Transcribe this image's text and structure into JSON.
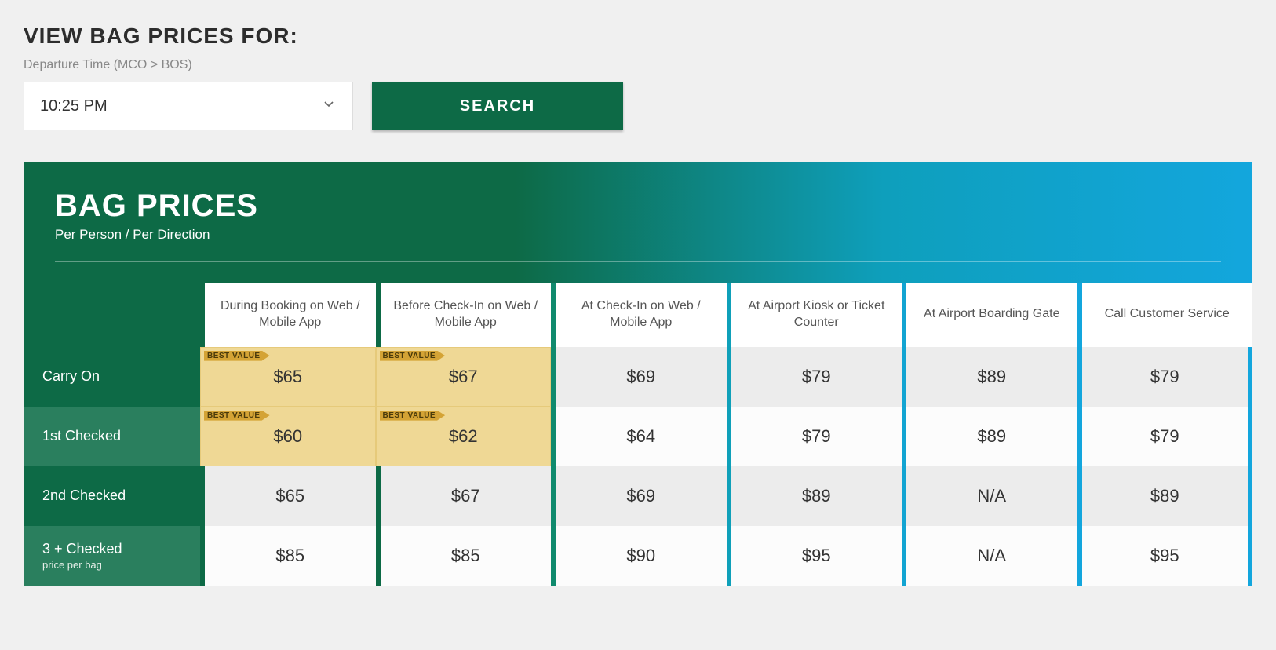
{
  "page_title": "VIEW BAG PRICES FOR:",
  "departure_label": "Departure Time (MCO > BOS)",
  "departure_value": "10:25 PM",
  "search_label": "SEARCH",
  "table": {
    "title": "BAG PRICES",
    "subtitle": "Per Person / Per Direction",
    "best_value_label": "BEST VALUE",
    "columns": [
      "During Booking on Web / Mobile App",
      "Before Check-In on Web / Mobile App",
      "At Check-In on Web / Mobile App",
      "At Airport Kiosk or Ticket Counter",
      "At Airport Boarding Gate",
      "Call Customer Service"
    ],
    "separator_colors": [
      "#0d6a46",
      "#0d6a46",
      "#108a6d",
      "#0fa0b9",
      "#12a4d2",
      "#13a6dd"
    ],
    "rows": [
      {
        "label": "Carry On",
        "sub": "",
        "values": [
          "$65",
          "$67",
          "$69",
          "$79",
          "$89",
          "$79"
        ],
        "best": [
          true,
          true,
          false,
          false,
          false,
          false
        ],
        "shade": "odd"
      },
      {
        "label": "1st Checked",
        "sub": "",
        "values": [
          "$60",
          "$62",
          "$64",
          "$79",
          "$89",
          "$79"
        ],
        "best": [
          true,
          true,
          false,
          false,
          false,
          false
        ],
        "shade": "even"
      },
      {
        "label": "2nd Checked",
        "sub": "",
        "values": [
          "$65",
          "$67",
          "$69",
          "$89",
          "N/A",
          "$89"
        ],
        "best": [
          false,
          false,
          false,
          false,
          false,
          false
        ],
        "shade": "odd"
      },
      {
        "label": "3 + Checked",
        "sub": "price per bag",
        "values": [
          "$85",
          "$85",
          "$90",
          "$95",
          "N/A",
          "$95"
        ],
        "best": [
          false,
          false,
          false,
          false,
          false,
          false
        ],
        "shade": "even"
      }
    ],
    "colors": {
      "header_gradient_start": "#0d6a46",
      "header_gradient_end": "#13a6dd",
      "best_value_bg": "#efd895",
      "best_value_badge": "#d4a335",
      "row_odd_bg": "#ececec",
      "row_even_bg": "#fcfcfc",
      "row_label_odd": "#0d6a46",
      "row_label_even": "#2a7f5e"
    }
  }
}
